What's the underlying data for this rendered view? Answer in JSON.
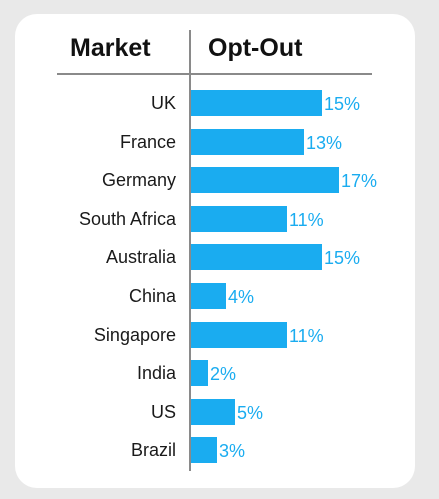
{
  "chart_data": {
    "type": "bar",
    "orientation": "horizontal",
    "column_headers": {
      "category": "Market",
      "value": "Opt-Out"
    },
    "categories": [
      "UK",
      "France",
      "Germany",
      "South Africa",
      "Australia",
      "China",
      "Singapore",
      "India",
      "US",
      "Brazil"
    ],
    "values": [
      15,
      13,
      17,
      11,
      15,
      4,
      11,
      2,
      5,
      3
    ],
    "value_labels": [
      "15%",
      "13%",
      "17%",
      "11%",
      "15%",
      "4%",
      "11%",
      "2%",
      "5%",
      "3%"
    ],
    "unit": "%",
    "xlim": [
      0,
      17
    ],
    "grid": false,
    "legend": "none",
    "colors": {
      "bar": "#1aacf0",
      "value_label": "#1aacf0",
      "text": "#1a1a1a"
    }
  }
}
